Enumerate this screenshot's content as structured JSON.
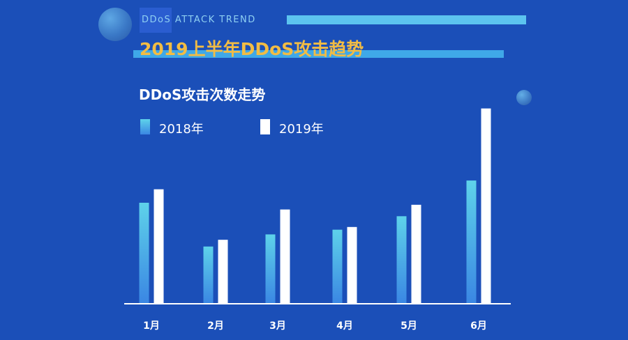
{
  "header": {
    "tag": "DDoS ATTACK TREND",
    "title": "2019上半年DDoS攻击趋势"
  },
  "colors": {
    "background": "#1b4fb8",
    "title_accent": "#f2bc44",
    "series_2018_top": "#5ed2ea",
    "series_2018_bottom": "#3a86e3",
    "series_2019": "#ffffff"
  },
  "chart_data": {
    "type": "bar",
    "title": "DDoS攻击次数走势",
    "categories": [
      "1月",
      "2月",
      "3月",
      "4月",
      "5月",
      "6月"
    ],
    "series": [
      {
        "name": "2018年",
        "values": [
          150,
          85,
          103,
          110,
          130,
          183
        ]
      },
      {
        "name": "2019年",
        "values": [
          170,
          95,
          140,
          114,
          147,
          290
        ]
      }
    ],
    "ylim": [
      0,
      300
    ],
    "grid": false,
    "legend": "top-left"
  }
}
